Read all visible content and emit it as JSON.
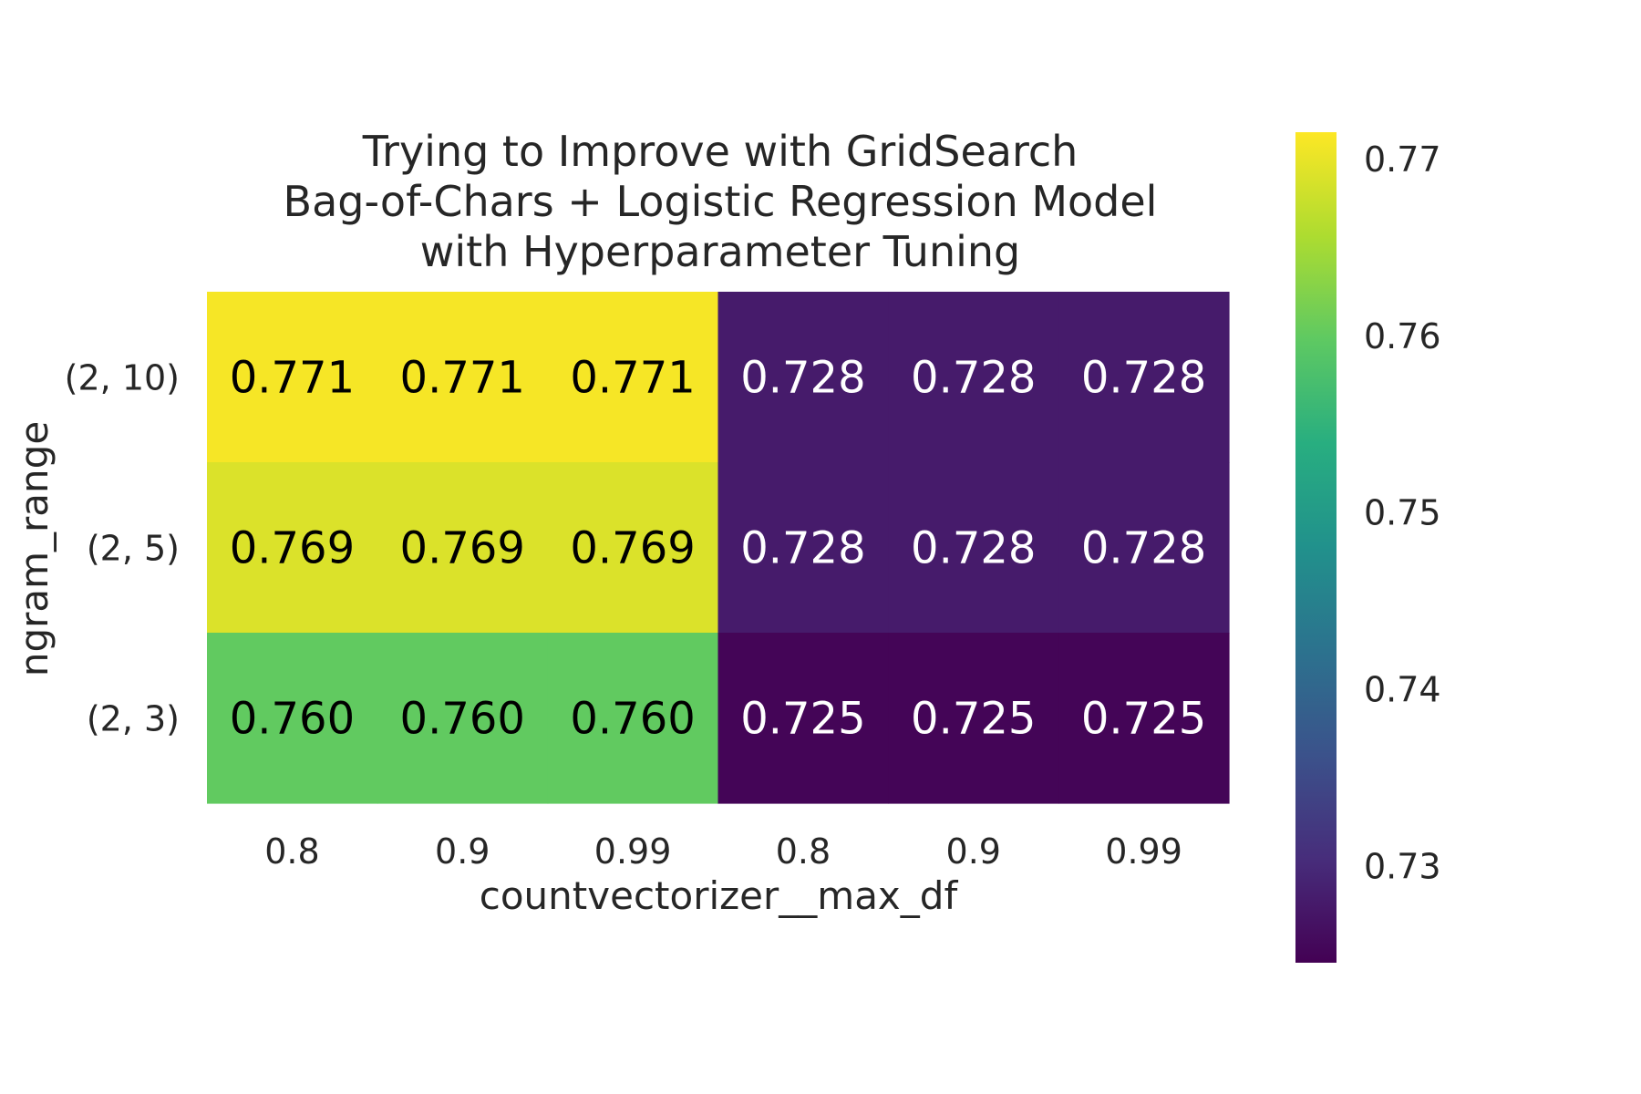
{
  "chart_data": {
    "type": "heatmap",
    "title": [
      "Trying to Improve with GridSearch",
      "Bag-of-Chars + Logistic Regression Model",
      "with Hyperparameter Tuning"
    ],
    "xlabel": "countvectorizer__max_df",
    "ylabel": "ngram_range",
    "x_categories": [
      "0.8",
      "0.9",
      "0.99",
      "0.8",
      "0.9",
      "0.99"
    ],
    "y_categories": [
      "(2, 10)",
      "(2, 5)",
      "(2, 3)"
    ],
    "values": [
      [
        0.771,
        0.771,
        0.771,
        0.728,
        0.728,
        0.728
      ],
      [
        0.769,
        0.769,
        0.769,
        0.728,
        0.728,
        0.728
      ],
      [
        0.76,
        0.76,
        0.76,
        0.725,
        0.725,
        0.725
      ]
    ],
    "value_labels": [
      [
        "0.771",
        "0.771",
        "0.771",
        "0.728",
        "0.728",
        "0.728"
      ],
      [
        "0.769",
        "0.769",
        "0.769",
        "0.728",
        "0.728",
        "0.728"
      ],
      [
        "0.760",
        "0.760",
        "0.760",
        "0.725",
        "0.725",
        "0.725"
      ]
    ],
    "colormap": "viridis",
    "colorbar": {
      "range": [
        0.7245,
        0.7715
      ],
      "ticks": [
        0.73,
        0.74,
        0.75,
        0.76,
        0.77
      ],
      "tick_labels": [
        "0.73",
        "0.74",
        "0.75",
        "0.76",
        "0.77"
      ]
    },
    "grid": false,
    "label_colors": {
      "dark": "#000000",
      "light": "#ffffff"
    }
  }
}
